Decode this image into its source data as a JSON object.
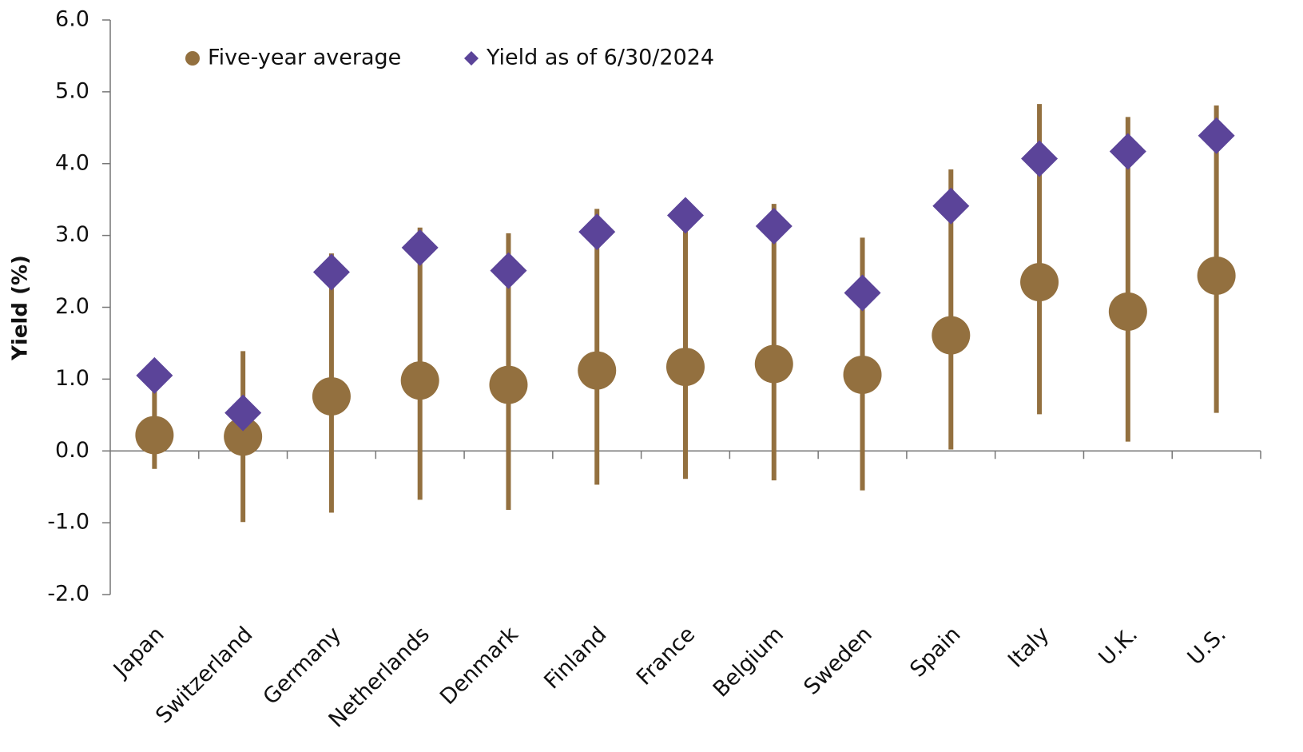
{
  "chart_data": {
    "type": "range-dot",
    "y_label": "Yield (%)",
    "categories": [
      "Japan",
      "Switzerland",
      "Germany",
      "Netherlands",
      "Denmark",
      "Finland",
      "France",
      "Belgium",
      "Sweden",
      "Spain",
      "Italy",
      "U.K.",
      "U.S."
    ],
    "range": {
      "color": "#93703f",
      "low": [
        -0.25,
        -0.99,
        -0.86,
        -0.68,
        -0.82,
        -0.47,
        -0.39,
        -0.41,
        -0.55,
        0.02,
        0.51,
        0.13,
        0.53
      ],
      "high": [
        1.0,
        1.39,
        2.75,
        3.11,
        3.03,
        3.37,
        3.3,
        3.44,
        2.97,
        3.92,
        4.83,
        4.65,
        4.81
      ]
    },
    "series": [
      {
        "name": "Five-year average",
        "color": "#93703f",
        "marker": "circle",
        "values": [
          0.22,
          0.2,
          0.76,
          0.98,
          0.92,
          1.12,
          1.17,
          1.21,
          1.06,
          1.61,
          2.35,
          1.94,
          2.44
        ]
      },
      {
        "name": "Yield as of 6/30/2024",
        "color": "#5b4499",
        "marker": "diamond",
        "values": [
          1.05,
          0.53,
          2.49,
          2.83,
          2.51,
          3.05,
          3.28,
          3.13,
          2.2,
          3.41,
          4.07,
          4.17,
          4.39
        ]
      }
    ],
    "ylim": [
      -2,
      6
    ],
    "yticks": [
      {
        "value": -2,
        "label": "-2.0"
      },
      {
        "value": -1,
        "label": "-1.0"
      },
      {
        "value": 0,
        "label": "0.0"
      },
      {
        "value": 1,
        "label": "1.0"
      },
      {
        "value": 2,
        "label": "2.0"
      },
      {
        "value": 3,
        "label": "3.0"
      },
      {
        "value": 4,
        "label": "4.0"
      },
      {
        "value": 5,
        "label": "5.0"
      },
      {
        "value": 6,
        "label": "6.0"
      }
    ]
  }
}
